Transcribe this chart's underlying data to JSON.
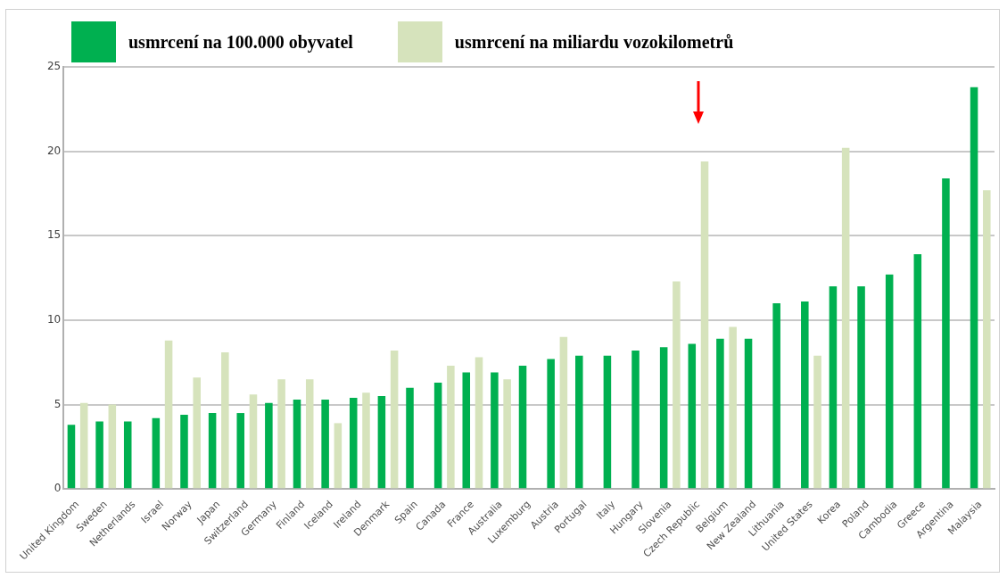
{
  "chart_data": {
    "type": "bar",
    "categories": [
      "United Kingdom",
      "Sweden",
      "Netherlands",
      "Israel",
      "Norway",
      "Japan",
      "Switzerland",
      "Germany",
      "Finland",
      "Iceland",
      "Ireland",
      "Denmark",
      "Spain",
      "Canada",
      "France",
      "Australia",
      "Luxemburg",
      "Austria",
      "Portugal",
      "Italy",
      "Hungary",
      "Slovenia",
      "Czech Republic",
      "Belgium",
      "New Zealand",
      "Lithuania",
      "United States",
      "Korea",
      "Poland",
      "Cambodia",
      "Greece",
      "Argentina",
      "Malaysia"
    ],
    "series": [
      {
        "name": "usmrcení na 100.000 obyvatel",
        "color": "#00b050",
        "values": [
          3.8,
          4.0,
          4.0,
          4.2,
          4.4,
          4.5,
          4.5,
          5.1,
          5.3,
          5.3,
          5.4,
          5.5,
          6.0,
          6.3,
          6.9,
          6.9,
          7.3,
          7.7,
          7.9,
          7.9,
          8.2,
          8.4,
          8.6,
          8.9,
          8.9,
          11.0,
          11.1,
          12.0,
          12.0,
          12.7,
          13.9,
          18.4,
          23.8
        ]
      },
      {
        "name": "usmrcení na miliardu vozokilometrů",
        "color": "#d6e3bc",
        "values": [
          5.1,
          5.0,
          null,
          8.8,
          6.6,
          8.1,
          5.6,
          6.5,
          6.5,
          3.9,
          5.7,
          8.2,
          null,
          7.3,
          7.8,
          6.5,
          null,
          9.0,
          null,
          null,
          null,
          12.3,
          19.4,
          9.6,
          null,
          null,
          7.9,
          20.2,
          null,
          null,
          null,
          null,
          17.7
        ]
      }
    ],
    "ylim": [
      0,
      25
    ],
    "yticks": [
      0,
      5,
      10,
      15,
      20,
      25
    ],
    "grid": "y",
    "legend": "top"
  }
}
